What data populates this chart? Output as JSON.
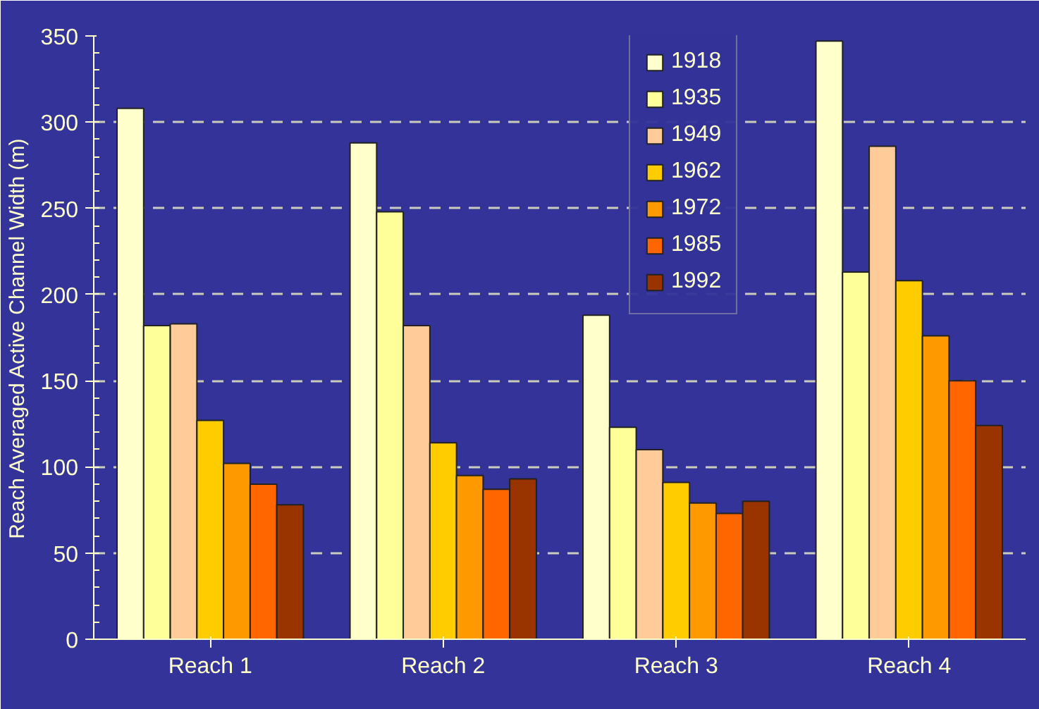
{
  "chart_data": {
    "type": "bar",
    "ylabel": "Reach Averaged Active Channel Width (m)",
    "categories": [
      "Reach 1",
      "Reach 2",
      "Reach 3",
      "Reach 4"
    ],
    "series": [
      {
        "name": "1918",
        "color": "#ffffcc",
        "values": [
          308,
          288,
          188,
          347
        ]
      },
      {
        "name": "1935",
        "color": "#ffff99",
        "values": [
          182,
          248,
          123,
          213
        ]
      },
      {
        "name": "1949",
        "color": "#ffcc99",
        "values": [
          183,
          182,
          110,
          286
        ]
      },
      {
        "name": "1962",
        "color": "#ffcc00",
        "values": [
          127,
          114,
          91,
          208
        ]
      },
      {
        "name": "1972",
        "color": "#ff9900",
        "values": [
          102,
          95,
          79,
          176
        ]
      },
      {
        "name": "1985",
        "color": "#ff6600",
        "values": [
          90,
          87,
          73,
          150
        ]
      },
      {
        "name": "1992",
        "color": "#993300",
        "values": [
          78,
          93,
          80,
          124
        ]
      }
    ],
    "ylim": [
      0,
      350
    ],
    "yticks": [
      0,
      50,
      100,
      150,
      200,
      250,
      300,
      350
    ],
    "grid": "y",
    "legend": "top"
  }
}
